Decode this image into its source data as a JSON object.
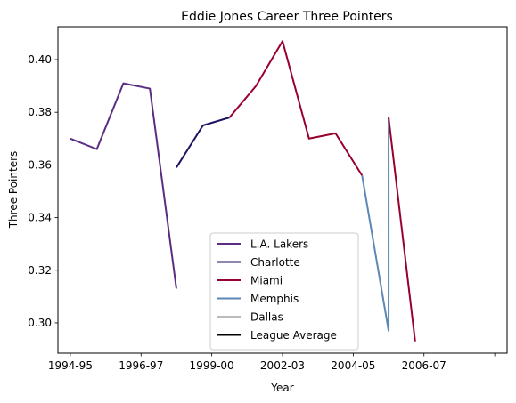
{
  "chart_data": {
    "type": "line",
    "title": "Eddie Jones  Career Three Pointers",
    "xlabel": "Year",
    "ylabel": "Three Pointers",
    "xlim": [
      -0.35,
      12.35
    ],
    "ylim": [
      0.2885,
      0.4125
    ],
    "x_ticks": [
      0,
      2,
      4,
      6,
      8,
      10,
      12
    ],
    "x_tick_labels": [
      "1994-95",
      "1996-97",
      "1999-00",
      "2002-03",
      "2004-05",
      "2006-07"
    ],
    "x_tick_label_positions": [
      0,
      2,
      4,
      6,
      8,
      10
    ],
    "y_ticks": [
      0.3,
      0.32,
      0.34,
      0.36,
      0.38,
      0.4
    ],
    "y_tick_labels": [
      "0.30",
      "0.32",
      "0.34",
      "0.36",
      "0.38",
      "0.40"
    ],
    "grid": false,
    "legend_position": "lower-center",
    "series": [
      {
        "name": "L.A. Lakers",
        "color": "#5a2d82",
        "points": [
          [
            0,
            0.37
          ],
          [
            0.75,
            0.366
          ],
          [
            1.5,
            0.391
          ],
          [
            2.25,
            0.389
          ],
          [
            3.0,
            0.313
          ]
        ]
      },
      {
        "name": "Charlotte",
        "color": "#1d1160",
        "points": [
          [
            3.0,
            0.359
          ],
          [
            3.75,
            0.375
          ],
          [
            4.5,
            0.378
          ]
        ]
      },
      {
        "name": "Miami",
        "color": "#98002e",
        "points": [
          [
            4.5,
            0.378
          ],
          [
            5.25,
            0.39
          ],
          [
            6.0,
            0.407
          ],
          [
            6.75,
            0.37
          ],
          [
            7.5,
            0.372
          ],
          [
            8.25,
            0.356
          ]
        ]
      },
      {
        "name": "Memphis",
        "color": "#5d87b5",
        "points": [
          [
            8.25,
            0.356
          ],
          [
            9.0,
            0.297
          ],
          [
            9.0,
            0.378
          ]
        ]
      },
      {
        "name": "Miami",
        "color": "#98002e",
        "legend": false,
        "points": [
          [
            9.0,
            0.378
          ],
          [
            9.75,
            0.293
          ]
        ]
      },
      {
        "name": "Dallas",
        "color": "#bbbbbb",
        "points": []
      },
      {
        "name": "League Average",
        "color": "#000000",
        "points": []
      }
    ]
  }
}
